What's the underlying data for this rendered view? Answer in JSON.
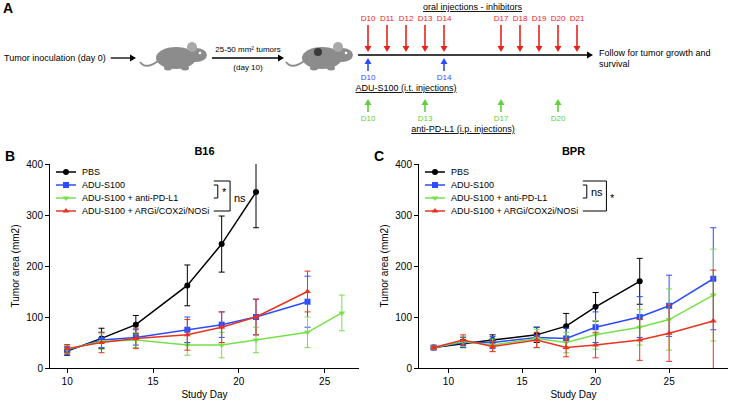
{
  "diagram": {
    "panel": "A",
    "inoculation": "Tumor inoculation (day 0)",
    "arrow_label": {
      "above": "25-50 mm² tumors",
      "below": "(day 10)"
    },
    "end_label": "Follow for tumor growth and survival",
    "schedules": [
      {
        "name": "oral injections - inhibitors",
        "color": "#e8231f",
        "position": "above",
        "days": [
          10,
          11,
          12,
          13,
          14,
          17,
          18,
          19,
          20,
          21
        ],
        "labels": [
          "D10",
          "D11",
          "D12",
          "D13",
          "D14",
          "D17",
          "D18",
          "D19",
          "D20",
          "D21"
        ]
      },
      {
        "name": "ADU-S100 (i.t. injections)",
        "color": "#2b4cff",
        "position": "below",
        "days": [
          10,
          14
        ],
        "labels": [
          "D10",
          "D14"
        ]
      },
      {
        "name": "anti-PD-L1 (i.p. injections)",
        "color": "#5fcf3c",
        "position": "below",
        "days": [
          10,
          13,
          17,
          20
        ],
        "labels": [
          "D10",
          "D13",
          "D17",
          "D20"
        ]
      }
    ]
  },
  "chart_data": [
    {
      "type": "line",
      "panel": "B",
      "title": "B16",
      "x_label": "Study Day",
      "y_label": "Tumor area (mm2)",
      "xlim": [
        9,
        27
      ],
      "xticks": [
        10,
        15,
        20,
        25
      ],
      "ylim": [
        0,
        400
      ],
      "yticks": [
        0,
        100,
        200,
        300,
        400
      ],
      "grid": false,
      "legend": "upper left",
      "series": [
        {
          "name": "PBS",
          "color": "#000000",
          "marker": "circle",
          "line_style": "solid",
          "x": [
            10,
            12,
            14,
            17,
            19,
            21
          ],
          "values": [
            33,
            58,
            85,
            162,
            243,
            345
          ],
          "errors": [
            8,
            20,
            18,
            40,
            55,
            70
          ]
        },
        {
          "name": "ADU-S100",
          "color": "#2b4cff",
          "marker": "square",
          "line_style": "solid",
          "x": [
            10,
            12,
            14,
            17,
            19,
            21,
            24
          ],
          "values": [
            35,
            55,
            60,
            75,
            85,
            100,
            130
          ],
          "errors": [
            8,
            15,
            15,
            25,
            25,
            35,
            50
          ]
        },
        {
          "name": "ADU-S100 + anti-PD-L1",
          "color": "#76e04a",
          "marker": "triangle-down",
          "line_style": "solid",
          "x": [
            10,
            12,
            14,
            17,
            19,
            21,
            24,
            26
          ],
          "values": [
            37,
            52,
            55,
            45,
            45,
            55,
            70,
            108
          ],
          "errors": [
            8,
            15,
            15,
            20,
            25,
            25,
            30,
            35
          ]
        },
        {
          "name": "ADU-S100 + ARGi/COX2i/NOSi",
          "color": "#e8331f",
          "marker": "triangle-up",
          "line_style": "solid",
          "x": [
            10,
            12,
            14,
            17,
            19,
            21,
            24
          ],
          "values": [
            38,
            50,
            58,
            65,
            80,
            100,
            150
          ],
          "errors": [
            8,
            20,
            20,
            30,
            30,
            35,
            40
          ]
        }
      ],
      "annotations": [
        {
          "text": "*",
          "between": [
            "ADU-S100",
            "ADU-S100 + anti-PD-L1"
          ]
        },
        {
          "text": "ns",
          "between": [
            "ADU-S100",
            "ADU-S100 + ARGi/COX2i/NOSi"
          ]
        }
      ]
    },
    {
      "type": "line",
      "panel": "C",
      "title": "BPR",
      "x_label": "Study Day",
      "y_label": "Tumor area (mm2)",
      "xlim": [
        8,
        29
      ],
      "xticks": [
        10,
        15,
        20,
        25
      ],
      "ylim": [
        0,
        400
      ],
      "yticks": [
        0,
        100,
        200,
        300,
        400
      ],
      "grid": false,
      "legend": "upper left",
      "series": [
        {
          "name": "PBS",
          "color": "#000000",
          "marker": "circle",
          "line_style": "solid",
          "x": [
            9,
            11,
            13,
            16,
            18,
            20,
            23
          ],
          "values": [
            40,
            48,
            55,
            65,
            82,
            120,
            170
          ],
          "errors": [
            3,
            8,
            10,
            15,
            25,
            28,
            45
          ]
        },
        {
          "name": "ADU-S100",
          "color": "#2b4cff",
          "marker": "square",
          "line_style": "solid",
          "x": [
            9,
            11,
            13,
            16,
            18,
            20,
            23,
            25,
            28
          ],
          "values": [
            40,
            50,
            50,
            60,
            58,
            80,
            100,
            122,
            175
          ],
          "errors": [
            3,
            10,
            12,
            20,
            20,
            30,
            40,
            60,
            100
          ]
        },
        {
          "name": "ADU-S100 + anti-PD-L1",
          "color": "#76e04a",
          "marker": "triangle-down",
          "line_style": "solid",
          "x": [
            9,
            11,
            13,
            16,
            18,
            20,
            23,
            25,
            28
          ],
          "values": [
            40,
            52,
            45,
            58,
            50,
            65,
            80,
            95,
            143
          ],
          "errors": [
            3,
            10,
            12,
            18,
            20,
            28,
            35,
            60,
            90
          ]
        },
        {
          "name": "ADU-S100 + ARGi/COX2i/NOSi",
          "color": "#e8331f",
          "marker": "triangle-up",
          "line_style": "solid",
          "x": [
            9,
            11,
            13,
            16,
            18,
            20,
            23,
            25,
            28
          ],
          "values": [
            40,
            55,
            42,
            55,
            40,
            45,
            55,
            68,
            92
          ],
          "errors": [
            3,
            10,
            10,
            15,
            18,
            25,
            40,
            55,
            100
          ]
        }
      ],
      "annotations": [
        {
          "text": "ns",
          "between": [
            "ADU-S100",
            "ADU-S100 + anti-PD-L1"
          ]
        },
        {
          "text": "*",
          "between": [
            "ADU-S100",
            "ADU-S100 + ARGi/COX2i/NOSi"
          ]
        }
      ]
    }
  ]
}
